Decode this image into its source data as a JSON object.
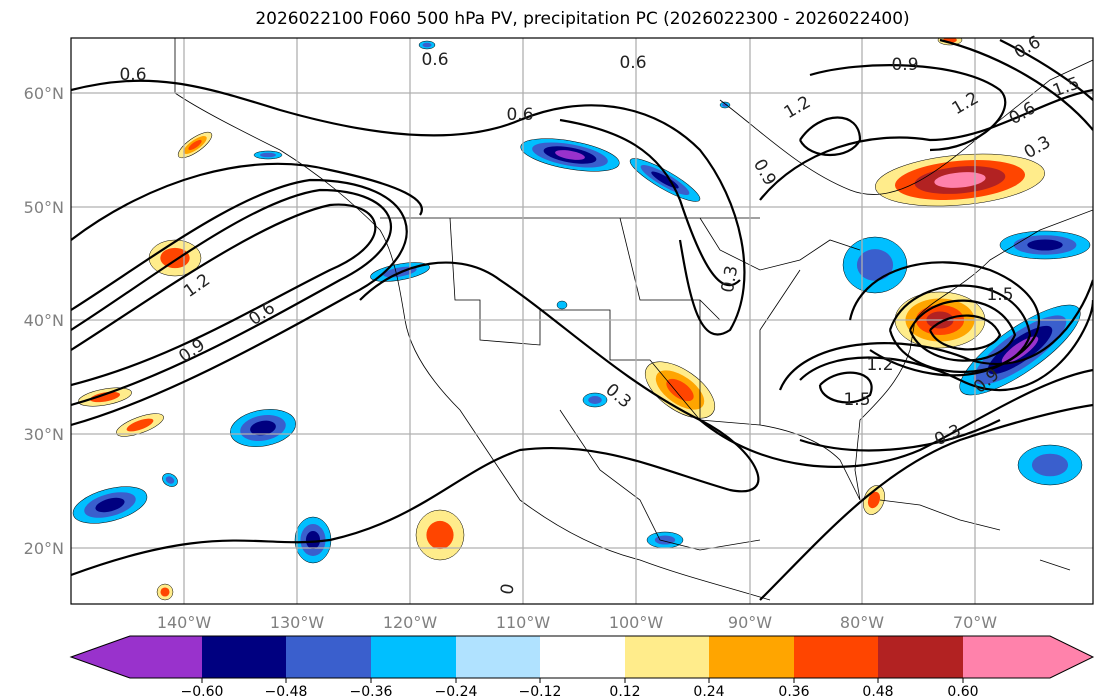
{
  "title": "2026022100 F060 500 hPa PV, precipitation PC (2026022300 - 2026022400)",
  "lat_labels": [
    "60°N",
    "50°N",
    "40°N",
    "30°N",
    "20°N"
  ],
  "lon_labels": [
    "140°W",
    "130°W",
    "120°W",
    "110°W",
    "100°W",
    "90°W",
    "80°W",
    "70°W"
  ],
  "colorbar": {
    "ticks": [
      "−0.60",
      "−0.48",
      "−0.36",
      "−0.24",
      "−0.12",
      "0.12",
      "0.24",
      "0.36",
      "0.48",
      "0.60"
    ],
    "colors": [
      "#9932cc",
      "#000080",
      "#3a5fcd",
      "#00bfff",
      "#b0e2ff",
      "#ffffff",
      "#ffec8b",
      "#ffa500",
      "#ff4500",
      "#b22222",
      "#ff82ab"
    ]
  },
  "contour_labels": [
    "0.6",
    "0.6",
    "0.6",
    "0.6",
    "0.9",
    "1.2",
    "0.6",
    "1.2",
    "0.9",
    "0.6",
    "1.2",
    "0.9",
    "0.3",
    "0.3",
    "0.3",
    "1.2",
    "1.5",
    "1.5",
    "0.9",
    "0.3",
    "0.6",
    "1.5",
    "0"
  ]
}
